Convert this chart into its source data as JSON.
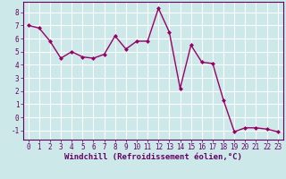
{
  "x": [
    0,
    1,
    2,
    3,
    4,
    5,
    6,
    7,
    8,
    9,
    10,
    11,
    12,
    13,
    14,
    15,
    16,
    17,
    18,
    19,
    20,
    21,
    22,
    23
  ],
  "y": [
    7.0,
    6.8,
    5.8,
    4.5,
    5.0,
    4.6,
    4.5,
    4.8,
    6.2,
    5.2,
    5.8,
    5.8,
    8.3,
    6.5,
    2.2,
    5.5,
    4.2,
    4.1,
    1.3,
    -1.1,
    -0.8,
    -0.8,
    -0.9,
    -1.1
  ],
  "line_color": "#990066",
  "marker": "D",
  "marker_size": 2,
  "line_width": 1.0,
  "bg_color": "#cce8e8",
  "grid_color": "#ffffff",
  "xlabel": "Windchill (Refroidissement éolien,°C)",
  "xlabel_color": "#660066",
  "tick_color": "#660066",
  "xlim": [
    -0.5,
    23.5
  ],
  "ylim": [
    -1.7,
    8.8
  ],
  "yticks": [
    -1,
    0,
    1,
    2,
    3,
    4,
    5,
    6,
    7,
    8
  ],
  "xticks": [
    0,
    1,
    2,
    3,
    4,
    5,
    6,
    7,
    8,
    9,
    10,
    11,
    12,
    13,
    14,
    15,
    16,
    17,
    18,
    19,
    20,
    21,
    22,
    23
  ],
  "tick_fontsize": 5.5,
  "xlabel_fontsize": 6.5
}
